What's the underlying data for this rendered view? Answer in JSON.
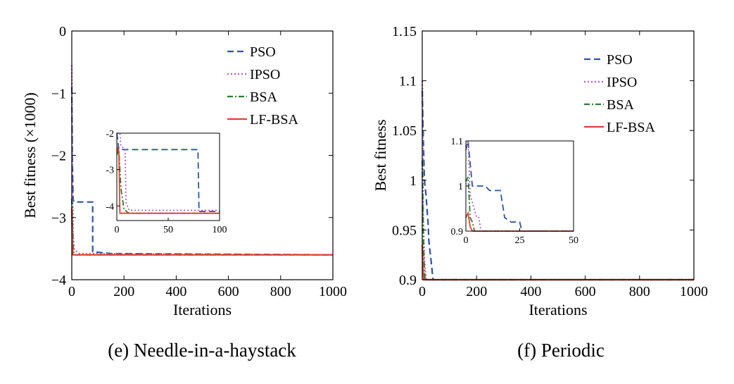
{
  "chart_data": [
    {
      "type": "line",
      "caption": "(e) Needle-in-a-haystack",
      "xlabel": "Iterations",
      "ylabel": "Best fitness (×1000)",
      "xlim": [
        0,
        1000
      ],
      "ylim": [
        -4,
        0
      ],
      "xticks": [
        0,
        200,
        400,
        600,
        800,
        1000
      ],
      "yticks": [
        0,
        -1,
        -2,
        -3,
        -4
      ],
      "legend_position": "top-right",
      "series": [
        {
          "name": "PSO",
          "color": "#2a55a6",
          "dash": "dashed",
          "x": [
            0,
            2,
            5,
            8,
            80,
            80,
            150,
            1000
          ],
          "y": [
            -0.9,
            -2.0,
            -2.7,
            -2.75,
            -2.75,
            -3.55,
            -3.58,
            -3.6
          ]
        },
        {
          "name": "IPSO",
          "color": "#b05cc2",
          "dash": "dotted",
          "x": [
            0,
            2,
            5,
            10,
            30,
            1000
          ],
          "y": [
            -0.55,
            -1.6,
            -3.3,
            -3.52,
            -3.58,
            -3.6
          ]
        },
        {
          "name": "BSA",
          "color": "#2e7d32",
          "dash": "dashdot",
          "x": [
            0,
            3,
            6,
            12,
            1000
          ],
          "y": [
            -2.7,
            -3.2,
            -3.55,
            -3.6,
            -3.6
          ]
        },
        {
          "name": "LF-BSA",
          "color": "#e0412f",
          "dash": "solid",
          "x": [
            0,
            2,
            4,
            6,
            1000
          ],
          "y": [
            -2.85,
            -3.4,
            -3.6,
            -3.6,
            -3.6
          ]
        }
      ],
      "inset": {
        "xlim": [
          0,
          100
        ],
        "ylim": [
          -4.4,
          -2
        ],
        "xticks": [
          0,
          50,
          100
        ],
        "yticks": [
          -2,
          -3,
          -4
        ],
        "series": [
          {
            "name": "PSO",
            "x": [
              0,
              2,
              3,
              79,
              80,
              100
            ],
            "y": [
              -2,
              -2.45,
              -2.45,
              -2.45,
              -4.15,
              -4.15
            ]
          },
          {
            "name": "IPSO",
            "x": [
              0,
              3,
              4,
              8,
              9,
              12,
              100
            ],
            "y": [
              -2.0,
              -2.0,
              -2.35,
              -2.45,
              -3.9,
              -4.12,
              -4.12
            ]
          },
          {
            "name": "BSA",
            "x": [
              0,
              2,
              4,
              7,
              12,
              100
            ],
            "y": [
              -2.6,
              -2.45,
              -3.5,
              -4.1,
              -4.2,
              -4.2
            ]
          },
          {
            "name": "LF-BSA",
            "x": [
              0,
              1,
              2,
              3,
              4,
              100
            ],
            "y": [
              -2.5,
              -2.4,
              -2.5,
              -4.2,
              -4.2,
              -4.2
            ]
          }
        ]
      }
    },
    {
      "type": "line",
      "caption": "(f) Periodic",
      "xlabel": "Iterations",
      "ylabel": "Best fitness",
      "xlim": [
        0,
        1000
      ],
      "ylim": [
        0.9,
        1.15
      ],
      "xticks": [
        0,
        200,
        400,
        600,
        800,
        1000
      ],
      "yticks": [
        1.15,
        1.1,
        1.05,
        1,
        0.95,
        0.9
      ],
      "legend_position": "top-right",
      "series": [
        {
          "name": "PSO",
          "color": "#2a55a6",
          "dash": "dashed",
          "x": [
            0,
            5,
            8,
            14,
            18,
            22,
            24,
            28,
            32,
            36,
            40,
            1000
          ],
          "y": [
            1.09,
            1.03,
            1.0,
            0.985,
            0.97,
            0.955,
            0.94,
            0.93,
            0.92,
            0.91,
            0.9,
            0.9
          ]
        },
        {
          "name": "IPSO",
          "color": "#b05cc2",
          "dash": "dotted",
          "x": [
            0,
            1,
            4,
            8,
            15,
            1000
          ],
          "y": [
            1.1,
            1.09,
            0.96,
            0.92,
            0.9,
            0.9
          ]
        },
        {
          "name": "BSA",
          "color": "#2e7d32",
          "dash": "dashdot",
          "x": [
            0,
            3,
            6,
            10,
            1000
          ],
          "y": [
            1.02,
            0.96,
            0.92,
            0.9,
            0.9
          ]
        },
        {
          "name": "LF-BSA",
          "color": "#e0412f",
          "dash": "solid",
          "x": [
            0,
            2,
            4,
            6,
            1000
          ],
          "y": [
            0.935,
            0.915,
            0.905,
            0.9,
            0.9
          ]
        }
      ],
      "inset": {
        "xlim": [
          0,
          50
        ],
        "ylim": [
          0.9,
          1.1
        ],
        "xticks": [
          0,
          25,
          50
        ],
        "yticks": [
          1.1,
          1,
          0.9
        ],
        "series": [
          {
            "name": "PSO",
            "x": [
              0,
              1,
              3,
              9,
              11,
              16,
              18,
              21,
              25,
              26,
              50
            ],
            "y": [
              1.08,
              1.1,
              1.0,
              1.0,
              0.99,
              0.99,
              0.93,
              0.92,
              0.92,
              0.9,
              0.9
            ]
          },
          {
            "name": "IPSO",
            "x": [
              0,
              1,
              2,
              5,
              6,
              7,
              50
            ],
            "y": [
              1.08,
              1.1,
              0.98,
              0.93,
              0.93,
              0.9,
              0.9
            ]
          },
          {
            "name": "BSA",
            "x": [
              0,
              1,
              2,
              3,
              4,
              50
            ],
            "y": [
              1.01,
              1.02,
              0.93,
              0.92,
              0.9,
              0.9
            ]
          },
          {
            "name": "LF-BSA",
            "x": [
              0,
              1,
              2,
              3,
              50
            ],
            "y": [
              0.93,
              0.94,
              0.91,
              0.9,
              0.9
            ]
          }
        ]
      }
    }
  ]
}
